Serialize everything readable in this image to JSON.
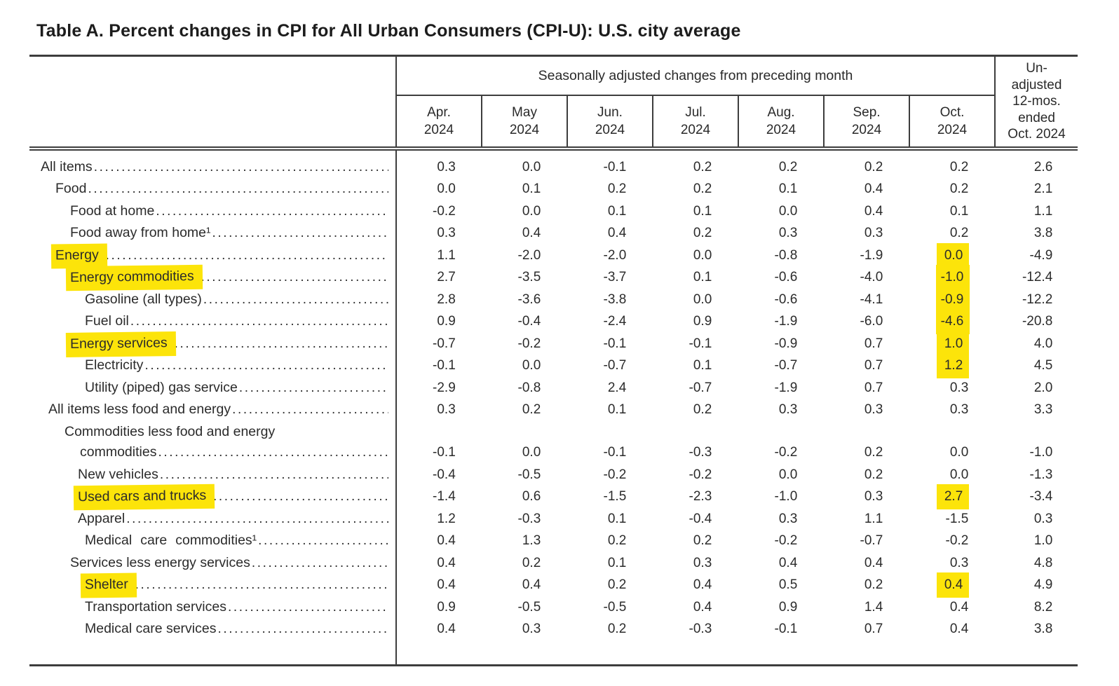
{
  "title": "Table A. Percent changes in CPI for All Urban Consumers (CPI-U): U.S. city average",
  "table": {
    "group_header": "Seasonally adjusted changes from preceding month",
    "highlight_color": "#fce40a",
    "columns": [
      {
        "month": "Apr.",
        "year": "2024"
      },
      {
        "month": "May",
        "year": "2024"
      },
      {
        "month": "Jun.",
        "year": "2024"
      },
      {
        "month": "Jul.",
        "year": "2024"
      },
      {
        "month": "Aug.",
        "year": "2024"
      },
      {
        "month": "Sep.",
        "year": "2024"
      },
      {
        "month": "Oct.",
        "year": "2024"
      }
    ],
    "last_column_header_lines": [
      "Un-",
      "adjusted",
      "12-mos.",
      "ended",
      "Oct. 2024"
    ],
    "rows": [
      {
        "label": "All items",
        "indent": 0,
        "hl_label": false,
        "hl_values": [],
        "values": [
          "0.3",
          "0.0",
          "-0.1",
          "0.2",
          "0.2",
          "0.2",
          "0.2",
          "2.6"
        ]
      },
      {
        "label": "Food",
        "indent": 2,
        "hl_label": false,
        "hl_values": [],
        "values": [
          "0.0",
          "0.1",
          "0.2",
          "0.2",
          "0.1",
          "0.4",
          "0.2",
          "2.1"
        ]
      },
      {
        "label": "Food at home",
        "indent": 4,
        "hl_label": false,
        "hl_values": [],
        "values": [
          "-0.2",
          "0.0",
          "0.1",
          "0.1",
          "0.0",
          "0.4",
          "0.1",
          "1.1"
        ]
      },
      {
        "label": "Food away from home¹",
        "indent": 4,
        "hl_label": false,
        "hl_values": [],
        "values": [
          "0.3",
          "0.4",
          "0.4",
          "0.2",
          "0.3",
          "0.3",
          "0.2",
          "3.8"
        ]
      },
      {
        "label": "Energy",
        "indent": 2,
        "hl_label": true,
        "hl_values": [
          6
        ],
        "values": [
          "1.1",
          "-2.0",
          "-2.0",
          "0.0",
          "-0.8",
          "-1.9",
          "0.0",
          "-4.9"
        ]
      },
      {
        "label": "Energy commodities",
        "indent": 4,
        "hl_label": true,
        "hl_values": [
          6
        ],
        "values": [
          "2.7",
          "-3.5",
          "-3.7",
          "0.1",
          "-0.6",
          "-4.0",
          "-1.0",
          "-12.4"
        ]
      },
      {
        "label": "Gasoline (all types)",
        "indent": 6,
        "hl_label": false,
        "hl_values": [
          6
        ],
        "values": [
          "2.8",
          "-3.6",
          "-3.8",
          "0.0",
          "-0.6",
          "-4.1",
          "-0.9",
          "-12.2"
        ]
      },
      {
        "label": "Fuel oil",
        "indent": 6,
        "hl_label": false,
        "hl_values": [
          6
        ],
        "values": [
          "0.9",
          "-0.4",
          "-2.4",
          "0.9",
          "-1.9",
          "-6.0",
          "-4.6",
          "-20.8"
        ]
      },
      {
        "label": "Energy services",
        "indent": 4,
        "hl_label": true,
        "hl_values": [
          6
        ],
        "values": [
          "-0.7",
          "-0.2",
          "-0.1",
          "-0.1",
          "-0.9",
          "0.7",
          "1.0",
          "4.0"
        ]
      },
      {
        "label": "Electricity",
        "indent": 6,
        "hl_label": false,
        "hl_values": [
          6
        ],
        "values": [
          "-0.1",
          "0.0",
          "-0.7",
          "0.1",
          "-0.7",
          "0.7",
          "1.2",
          "4.5"
        ]
      },
      {
        "label": "Utility (piped) gas service",
        "indent": 6,
        "hl_label": false,
        "hl_values": [],
        "values": [
          "-2.9",
          "-0.8",
          "2.4",
          "-0.7",
          "-1.9",
          "0.7",
          "0.3",
          "2.0"
        ]
      },
      {
        "label": "All items less food and energy",
        "indent": 1,
        "hl_label": false,
        "hl_values": [],
        "values": [
          "0.3",
          "0.2",
          "0.1",
          "0.2",
          "0.3",
          "0.3",
          "0.3",
          "3.3"
        ]
      },
      {
        "label": "Commodities less food and energy",
        "label2": "commodities",
        "indent": 3,
        "hl_label": false,
        "hl_values": [],
        "values": [
          "-0.1",
          "0.0",
          "-0.1",
          "-0.3",
          "-0.2",
          "0.2",
          "0.0",
          "-1.0"
        ]
      },
      {
        "label": "New vehicles",
        "indent": 5,
        "hl_label": false,
        "hl_values": [],
        "values": [
          "-0.4",
          "-0.5",
          "-0.2",
          "-0.2",
          "0.0",
          "0.2",
          "0.0",
          "-1.3"
        ]
      },
      {
        "label": "Used cars and trucks",
        "indent": 5,
        "hl_label": true,
        "hl_values": [
          6
        ],
        "values": [
          "-1.4",
          "0.6",
          "-1.5",
          "-2.3",
          "-1.0",
          "0.3",
          "2.7",
          "-3.4"
        ]
      },
      {
        "label": "Apparel",
        "indent": 5,
        "hl_label": false,
        "hl_values": [],
        "values": [
          "1.2",
          "-0.3",
          "0.1",
          "-0.4",
          "0.3",
          "1.1",
          "-1.5",
          "0.3"
        ]
      },
      {
        "label": "Medical care commodities¹",
        "indent": 6,
        "hl_label": false,
        "hl_values": [],
        "values": [
          "0.4",
          "1.3",
          "0.2",
          "0.2",
          "-0.2",
          "-0.7",
          "-0.2",
          "1.0"
        ]
      },
      {
        "label": "Services less energy services",
        "indent": 4,
        "hl_label": false,
        "hl_values": [],
        "values": [
          "0.4",
          "0.2",
          "0.1",
          "0.3",
          "0.4",
          "0.4",
          "0.3",
          "4.8"
        ]
      },
      {
        "label": "Shelter",
        "indent": 6,
        "hl_label": true,
        "hl_values": [
          6
        ],
        "values": [
          "0.4",
          "0.4",
          "0.2",
          "0.4",
          "0.5",
          "0.2",
          "0.4",
          "4.9"
        ]
      },
      {
        "label": "Transportation services",
        "indent": 6,
        "hl_label": false,
        "hl_values": [],
        "values": [
          "0.9",
          "-0.5",
          "-0.5",
          "0.4",
          "0.9",
          "1.4",
          "0.4",
          "8.2"
        ]
      },
      {
        "label": "Medical care services",
        "indent": 6,
        "hl_label": false,
        "hl_values": [],
        "values": [
          "0.4",
          "0.3",
          "0.2",
          "-0.3",
          "-0.1",
          "0.7",
          "0.4",
          "3.8"
        ]
      }
    ]
  }
}
